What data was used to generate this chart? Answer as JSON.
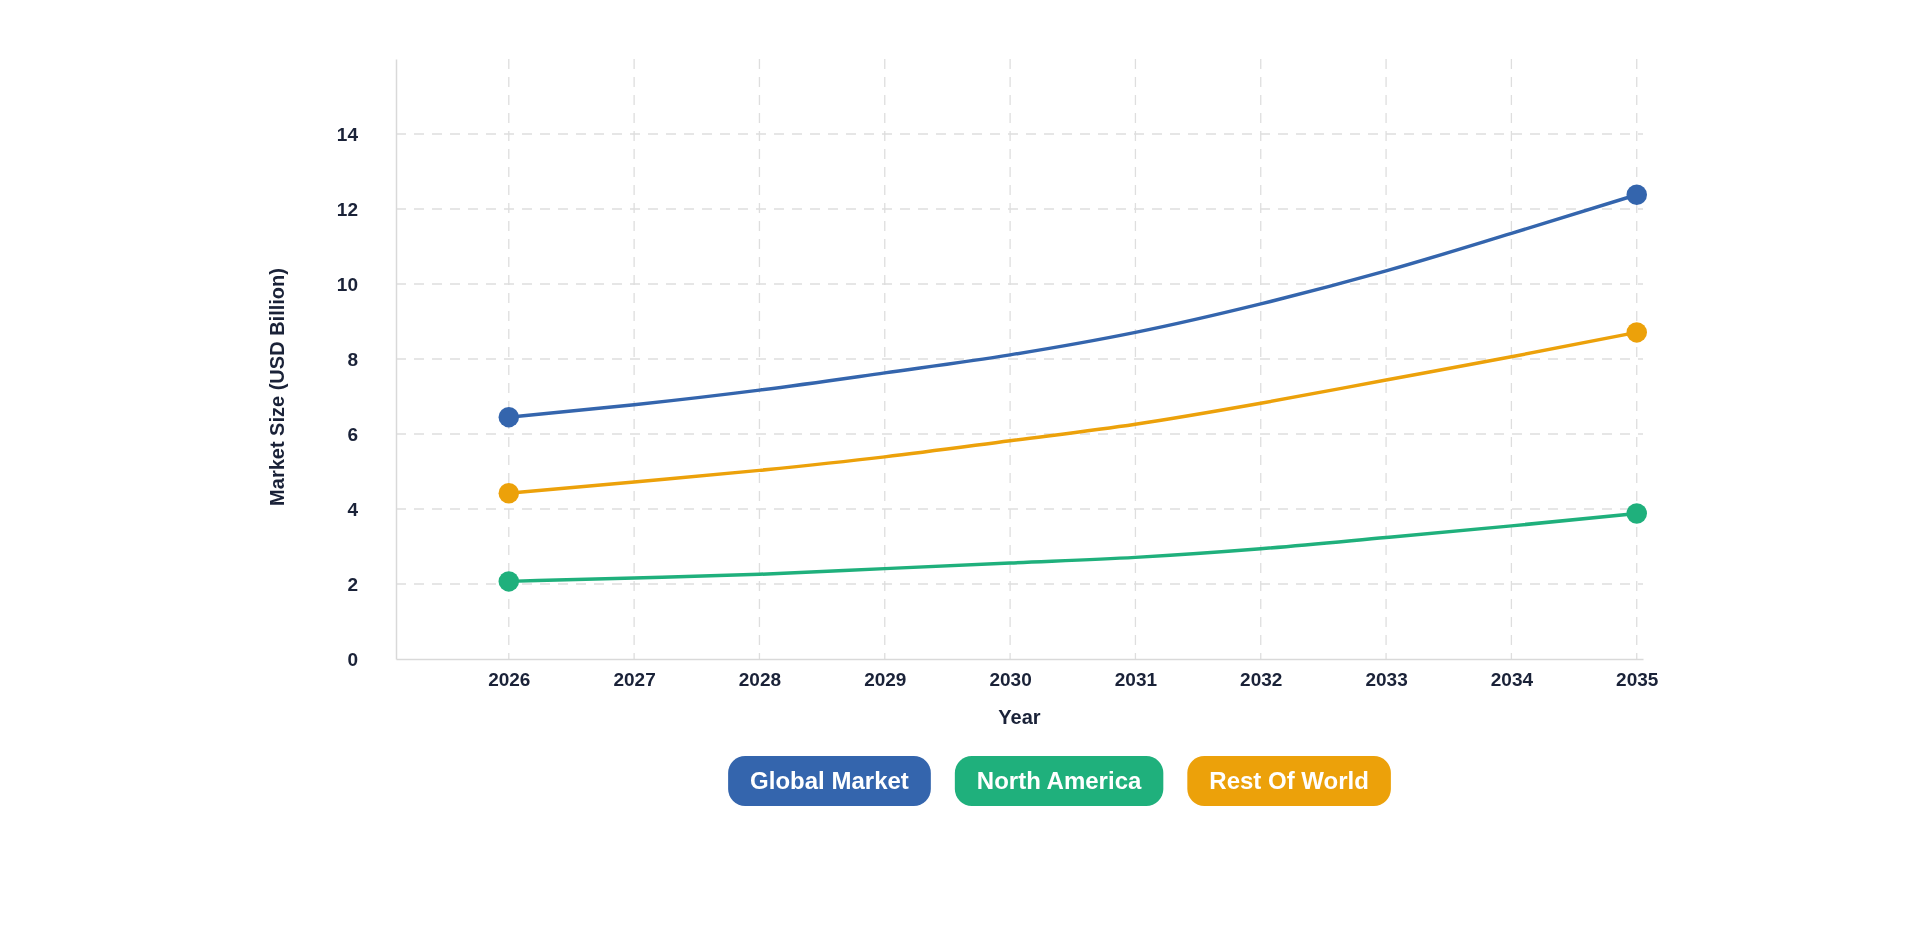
{
  "chart_data": {
    "type": "line",
    "xlabel": "Year",
    "ylabel": "Market Size (USD Billion)",
    "x": [
      2026,
      2027,
      2028,
      2029,
      2030,
      2031,
      2032,
      2033,
      2034,
      2035
    ],
    "xlim": [
      2025.1,
      2035.05
    ],
    "xticks": [
      2026,
      2027,
      2028,
      2029,
      2030,
      2031,
      2032,
      2033,
      2034,
      2035
    ],
    "ylim": [
      0,
      16
    ],
    "yticks": [
      0,
      2,
      4,
      6,
      8,
      10,
      12,
      14
    ],
    "grid": true,
    "legend": "bottom",
    "line_style": "solid",
    "series": [
      {
        "name": "Global Market",
        "color": "#3465ad",
        "values": [
          6.45,
          6.78,
          7.17,
          7.63,
          8.11,
          8.71,
          9.47,
          10.35,
          11.35,
          12.38
        ]
      },
      {
        "name": "North America",
        "color": "#1fb07c",
        "values": [
          2.07,
          2.16,
          2.26,
          2.41,
          2.56,
          2.71,
          2.94,
          3.24,
          3.55,
          3.88
        ]
      },
      {
        "name": "Rest Of World",
        "color": "#eca10a",
        "values": [
          4.42,
          4.72,
          5.03,
          5.39,
          5.82,
          6.26,
          6.82,
          7.44,
          8.06,
          8.71
        ]
      },
      {
        "type": "scatter",
        "marker": "circle",
        "color": "#3465ad",
        "values": [
          6.45,
          null,
          null,
          null,
          null,
          null,
          null,
          null,
          null,
          12.38
        ]
      },
      {
        "type": "scatter",
        "marker": "circle",
        "color": "#1fb07c",
        "values": [
          2.07,
          null,
          null,
          null,
          null,
          null,
          null,
          null,
          null,
          3.88
        ]
      },
      {
        "type": "scatter",
        "marker": "circle",
        "color": "#eca10a",
        "values": [
          4.42,
          null,
          null,
          null,
          null,
          null,
          null,
          null,
          null,
          8.71
        ]
      }
    ]
  }
}
